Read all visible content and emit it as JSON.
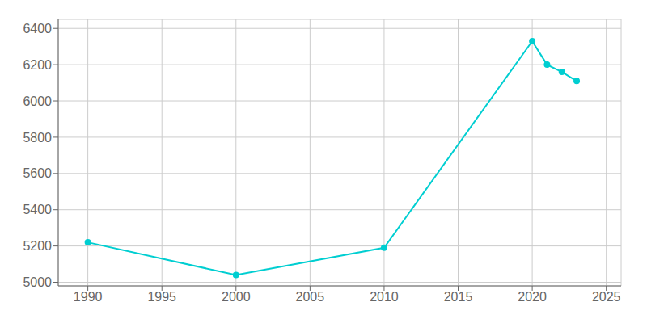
{
  "chart_data": {
    "type": "line",
    "x": [
      1990,
      2000,
      2010,
      2020,
      2021,
      2022,
      2023
    ],
    "values": [
      5220,
      5040,
      5190,
      6330,
      6200,
      6160,
      6110
    ],
    "color": "#00CED1",
    "marker": "circle",
    "xlim": [
      1988,
      2026
    ],
    "ylim": [
      4980,
      6450
    ],
    "xticks": [
      1990,
      1995,
      2000,
      2005,
      2010,
      2015,
      2020,
      2025
    ],
    "yticks": [
      5000,
      5200,
      5400,
      5600,
      5800,
      6000,
      6200,
      6400
    ],
    "grid": true
  }
}
